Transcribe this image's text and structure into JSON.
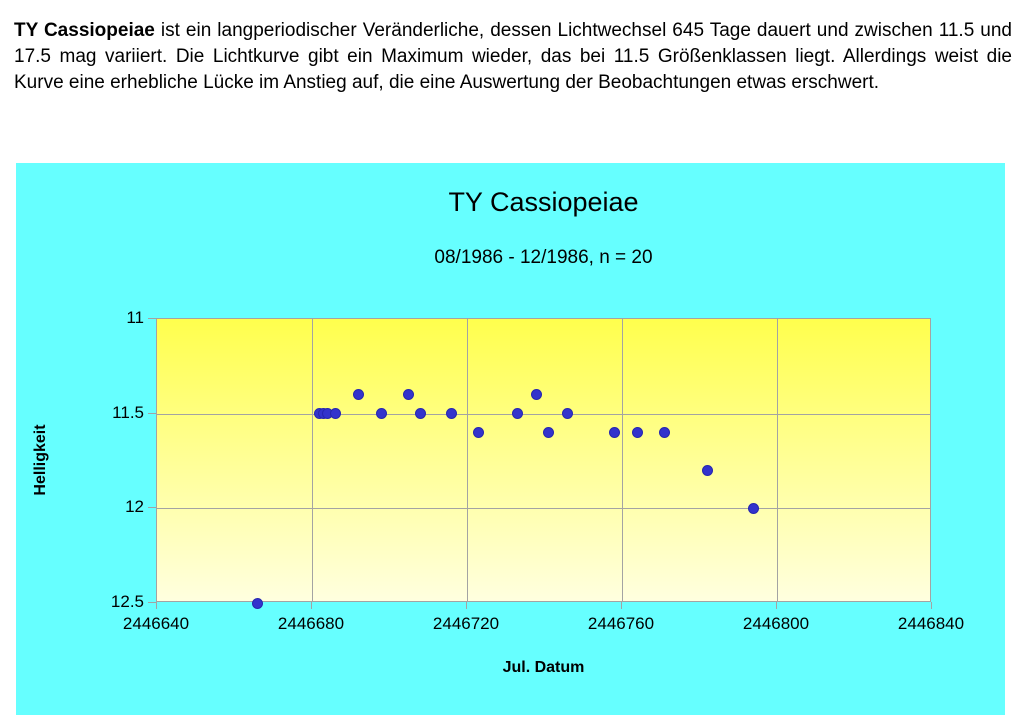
{
  "intro": {
    "lead": "TY Cassiopeiae",
    "body": " ist ein langperiodischer Veränderliche, dessen Lichtwechsel 645 Tage dauert und zwischen 11.5 und 17.5 mag variiert. Die Lichtkurve gibt ein Maximum wieder, das bei 11.5 Größenklassen liegt. Allerdings weist die Kurve eine erhebliche Lücke im Anstieg auf, die eine Auswertung der Beobachtungen etwas erschwert."
  },
  "chart_data": {
    "type": "scatter",
    "title": "TY Cassiopeiae",
    "subtitle": "08/1986 - 12/1986, n = 20",
    "xlabel": "Jul. Datum",
    "ylabel": "Helligkeit",
    "xlim": [
      2446640,
      2446840
    ],
    "ylim": [
      11,
      12.5
    ],
    "y_axis_inverted_brightness": true,
    "grid": true,
    "legend": "none",
    "xticks": [
      2446640,
      2446680,
      2446720,
      2446760,
      2446800,
      2446840
    ],
    "yticks": [
      11,
      11.5,
      12,
      12.5
    ],
    "n": 20,
    "points": [
      [
        2446666,
        12.5
      ],
      [
        2446682,
        11.5
      ],
      [
        2446683,
        11.5
      ],
      [
        2446684,
        11.5
      ],
      [
        2446686,
        11.5
      ],
      [
        2446692,
        11.4
      ],
      [
        2446698,
        11.5
      ],
      [
        2446705,
        11.4
      ],
      [
        2446708,
        11.5
      ],
      [
        2446716,
        11.5
      ],
      [
        2446723,
        11.6
      ],
      [
        2446733,
        11.5
      ],
      [
        2446738,
        11.4
      ],
      [
        2446741,
        11.6
      ],
      [
        2446746,
        11.5
      ],
      [
        2446758,
        11.6
      ],
      [
        2446764,
        11.6
      ],
      [
        2446771,
        11.6
      ],
      [
        2446782,
        11.8
      ],
      [
        2446794,
        12.0
      ]
    ],
    "colors": {
      "panel_background": "#66ffff",
      "plot_gradient_top": "#ffff4d",
      "plot_gradient_bottom": "#ffffdf",
      "marker": "#3333cc",
      "marker_edge": "#2626b0",
      "gridline": "#a3a3a3",
      "text": "#000000"
    }
  }
}
